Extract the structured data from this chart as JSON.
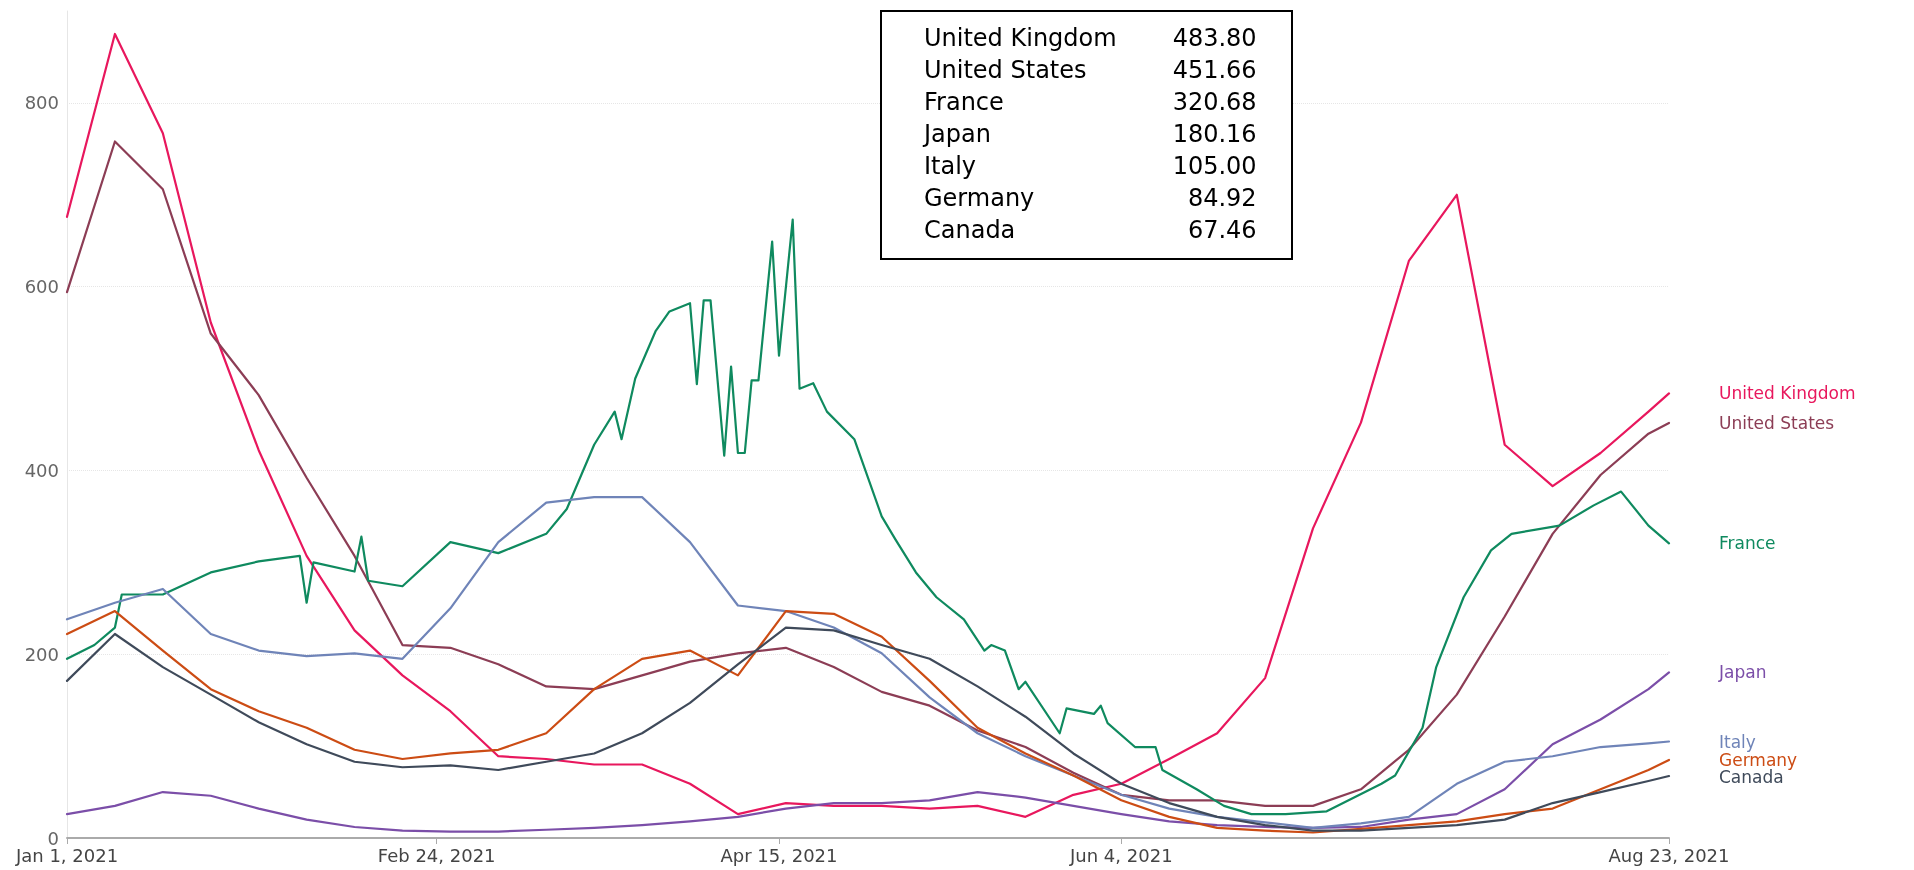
{
  "chart_data": {
    "type": "line",
    "x": [
      "2021-01-01",
      "2021-01-08",
      "2021-01-15",
      "2021-01-22",
      "2021-01-29",
      "2021-02-05",
      "2021-02-12",
      "2021-02-19",
      "2021-02-26",
      "2021-03-05",
      "2021-03-12",
      "2021-03-19",
      "2021-03-26",
      "2021-04-02",
      "2021-04-09",
      "2021-04-16",
      "2021-04-23",
      "2021-04-30",
      "2021-05-07",
      "2021-05-14",
      "2021-05-21",
      "2021-05-28",
      "2021-06-04",
      "2021-06-11",
      "2021-06-18",
      "2021-06-25",
      "2021-07-02",
      "2021-07-09",
      "2021-07-16",
      "2021-07-23",
      "2021-07-30",
      "2021-08-06",
      "2021-08-13",
      "2021-08-20",
      "2021-08-23"
    ],
    "series": [
      {
        "name": "United Kingdom",
        "color": "#e8175d",
        "values": [
          676,
          875,
          767,
          561,
          422,
          307,
          226,
          177,
          138,
          89,
          86,
          80,
          80,
          59,
          26,
          38,
          35,
          35,
          32,
          35,
          23,
          47,
          59,
          86,
          114,
          174,
          337,
          452,
          628,
          700,
          428,
          383,
          419,
          464,
          483.8
        ]
      },
      {
        "name": "United States",
        "color": "#8c3d55",
        "values": [
          594,
          758,
          706,
          549,
          482,
          392,
          307,
          210,
          207,
          189,
          165,
          162,
          177,
          192,
          201,
          207,
          186,
          159,
          144,
          117,
          99,
          71,
          47,
          41,
          41,
          35,
          35,
          53,
          96,
          156,
          241,
          331,
          395,
          440,
          451.66
        ]
      },
      {
        "name": "France",
        "color": "#0f8a5f",
        "x": [
          "2021-01-01",
          "2021-01-05",
          "2021-01-08",
          "2021-01-09",
          "2021-01-15",
          "2021-01-22",
          "2021-01-29",
          "2021-02-04",
          "2021-02-05",
          "2021-02-06",
          "2021-02-12",
          "2021-02-13",
          "2021-02-14",
          "2021-02-19",
          "2021-02-26",
          "2021-03-05",
          "2021-03-12",
          "2021-03-15",
          "2021-03-19",
          "2021-03-22",
          "2021-03-23",
          "2021-03-25",
          "2021-03-28",
          "2021-03-30",
          "2021-04-02",
          "2021-04-03",
          "2021-04-04",
          "2021-04-05",
          "2021-04-07",
          "2021-04-08",
          "2021-04-09",
          "2021-04-10",
          "2021-04-11",
          "2021-04-12",
          "2021-04-14",
          "2021-04-15",
          "2021-04-17",
          "2021-04-18",
          "2021-04-20",
          "2021-04-22",
          "2021-04-26",
          "2021-04-30",
          "2021-05-02",
          "2021-05-05",
          "2021-05-08",
          "2021-05-12",
          "2021-05-15",
          "2021-05-16",
          "2021-05-18",
          "2021-05-20",
          "2021-05-21",
          "2021-05-26",
          "2021-05-27",
          "2021-05-31",
          "2021-06-01",
          "2021-06-02",
          "2021-06-06",
          "2021-06-09",
          "2021-06-10",
          "2021-06-15",
          "2021-06-19",
          "2021-06-23",
          "2021-06-28",
          "2021-07-04",
          "2021-07-12",
          "2021-07-14",
          "2021-07-18",
          "2021-07-20",
          "2021-07-24",
          "2021-07-28",
          "2021-07-31",
          "2021-08-07",
          "2021-08-12",
          "2021-08-16",
          "2021-08-20",
          "2021-08-23"
        ],
        "values": [
          195,
          210,
          229,
          265,
          265,
          289,
          301,
          307,
          256,
          300,
          290,
          328,
          280,
          274,
          322,
          310,
          331,
          358,
          428,
          464,
          434,
          500,
          552,
          573,
          582,
          494,
          585,
          585,
          416,
          513,
          419,
          419,
          498,
          498,
          649,
          525,
          673,
          489,
          495,
          464,
          434,
          350,
          325,
          289,
          262,
          238,
          204,
          210,
          204,
          162,
          170,
          114,
          141,
          135,
          144,
          125,
          99,
          99,
          74,
          53,
          35,
          26,
          26,
          29,
          59,
          68,
          120,
          186,
          262,
          313,
          331,
          340,
          362,
          377,
          340,
          320.68
        ]
      },
      {
        "name": "Japan",
        "color": "#7b4ea8",
        "values": [
          26,
          35,
          50,
          46,
          32,
          20,
          12,
          8,
          7,
          7,
          9,
          11,
          14,
          18,
          23,
          32,
          38,
          38,
          41,
          50,
          44,
          35,
          26,
          18,
          14,
          12,
          11,
          12,
          20,
          26,
          53,
          102,
          129,
          162,
          180.16
        ]
      },
      {
        "name": "Italy",
        "color": "#6f84b8",
        "values": [
          238,
          256,
          271,
          222,
          204,
          198,
          201,
          195,
          250,
          322,
          365,
          371,
          371,
          322,
          253,
          247,
          229,
          201,
          153,
          114,
          89,
          68,
          47,
          32,
          23,
          17,
          11,
          16,
          23,
          59,
          83,
          89,
          99,
          103,
          105
        ]
      },
      {
        "name": "Germany",
        "color": "#cc4c14",
        "values": [
          222,
          247,
          204,
          162,
          138,
          120,
          96,
          86,
          92,
          96,
          114,
          162,
          195,
          204,
          177,
          247,
          244,
          219,
          171,
          120,
          92,
          68,
          41,
          23,
          11,
          8,
          6,
          10,
          14,
          18,
          26,
          32,
          53,
          74,
          84.92
        ]
      },
      {
        "name": "Canada",
        "color": "#3f4a5a",
        "values": [
          171,
          222,
          186,
          156,
          126,
          102,
          83,
          77,
          79,
          74,
          83,
          92,
          114,
          147,
          189,
          229,
          226,
          210,
          195,
          165,
          132,
          92,
          59,
          38,
          23,
          14,
          8,
          8,
          11,
          14,
          20,
          38,
          50,
          62,
          67.46
        ]
      }
    ],
    "xlim": [
      "2021-01-01",
      "2021-08-23"
    ],
    "xticks": [
      {
        "value": "2021-01-01",
        "label": "Jan 1, 2021"
      },
      {
        "value": "2021-02-24",
        "label": "Feb 24, 2021"
      },
      {
        "value": "2021-04-15",
        "label": "Apr 15, 2021"
      },
      {
        "value": "2021-06-04",
        "label": "Jun 4, 2021"
      },
      {
        "value": "2021-08-23",
        "label": "Aug 23, 2021"
      }
    ],
    "ylim": [
      0,
      900
    ],
    "yticks": [
      0,
      200,
      400,
      600,
      800
    ],
    "grid": "y",
    "legend": false,
    "marker": "none",
    "line_style": "solid",
    "annotations": [
      "United Kingdom 483.80",
      "United States 451.66",
      "France 320.68",
      "Japan 180.16",
      "Italy 105.00",
      "Germany 84.92",
      "Canada 67.46"
    ]
  }
}
